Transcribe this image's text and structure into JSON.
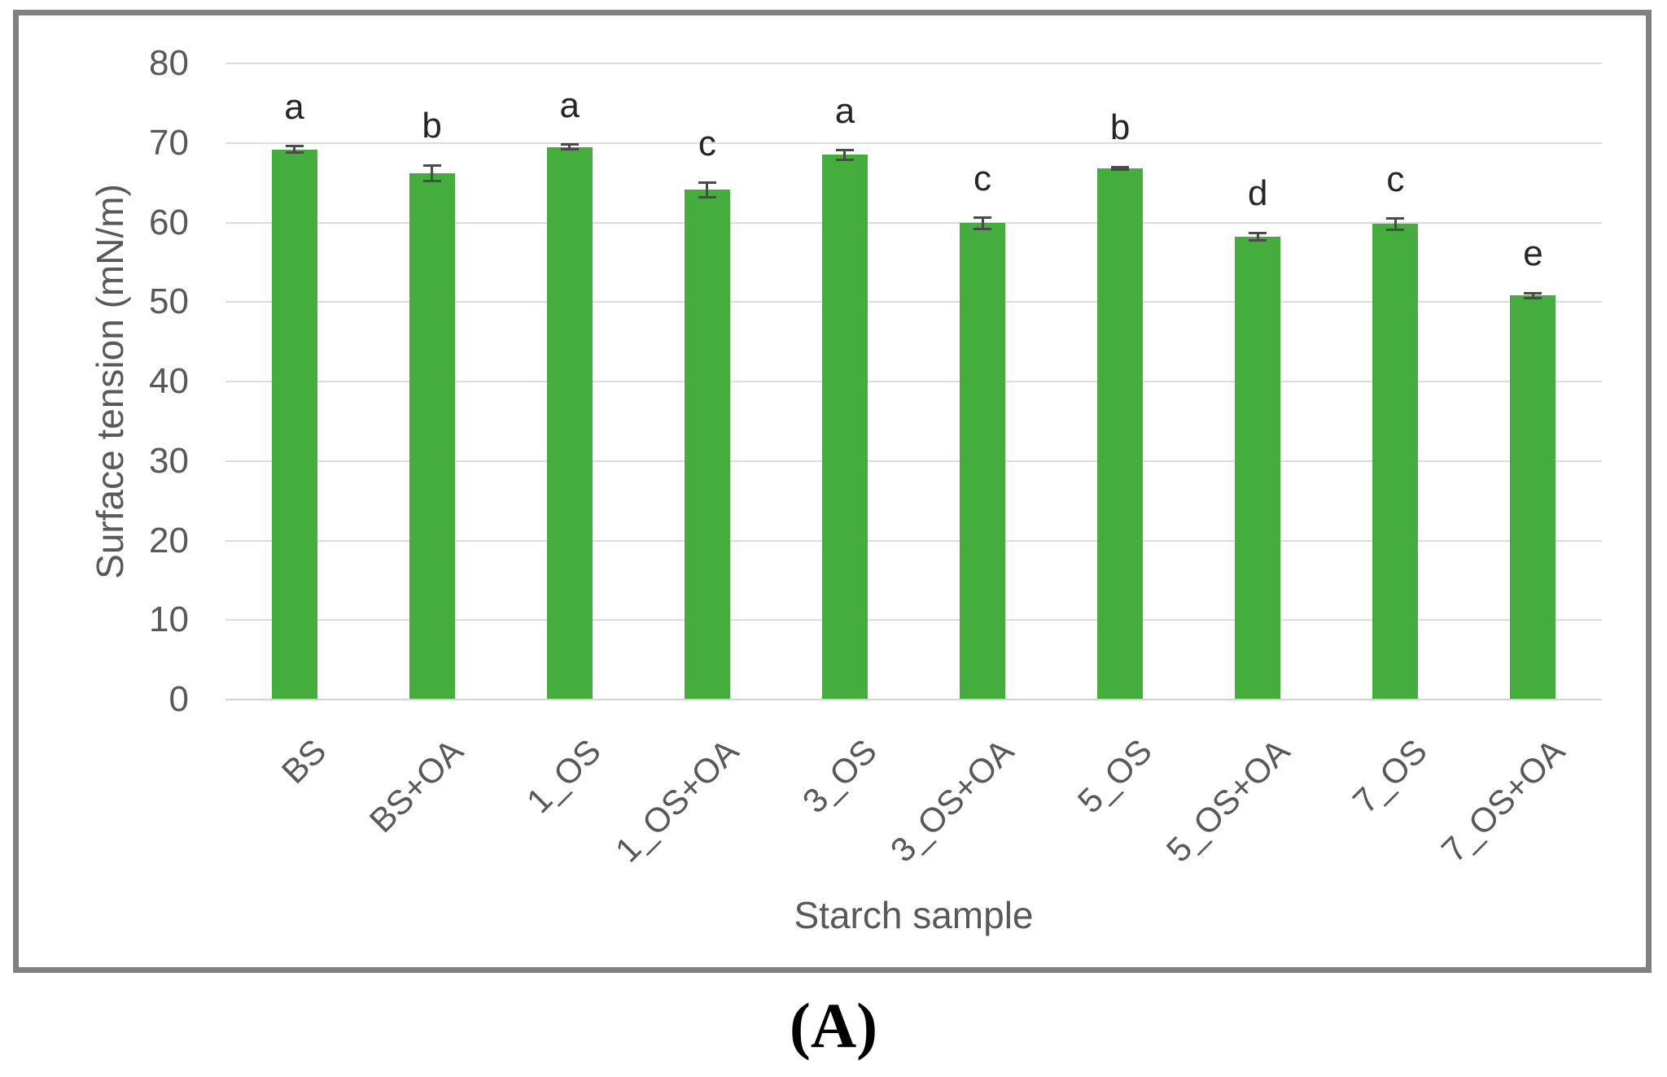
{
  "figure": {
    "panel_label": "(A)"
  },
  "chart_data": {
    "type": "bar",
    "title": "",
    "xlabel": "Starch sample",
    "ylabel": "Surface tension (mN/m)",
    "ylim": [
      0,
      80
    ],
    "yticks": [
      0,
      10,
      20,
      30,
      40,
      50,
      60,
      70,
      80
    ],
    "grid": true,
    "legend_position": "none",
    "categories": [
      "BS",
      "BS+OA",
      "1_OS",
      "1_OS+OA",
      "3_OS",
      "3_OS+OA",
      "5_OS",
      "5_OS+OA",
      "7_OS",
      "7_OS+OA"
    ],
    "series": [
      {
        "name": "Surface tension",
        "values": [
          69.2,
          66.2,
          69.5,
          64.1,
          68.5,
          59.9,
          66.8,
          58.2,
          59.8,
          50.8
        ],
        "errors": [
          0.4,
          1.0,
          0.3,
          0.9,
          0.6,
          0.7,
          0.2,
          0.5,
          0.7,
          0.3
        ],
        "significance_letters": [
          "a",
          "b",
          "a",
          "c",
          "a",
          "c",
          "b",
          "d",
          "c",
          "e"
        ]
      }
    ]
  },
  "colors": {
    "bar_fill": "#45AD3D",
    "error_bar": "#4A4A4A",
    "gridline": "#DCDCDC",
    "axis_text": "#595959",
    "letter_text": "#262626",
    "frame_border": "#808080"
  }
}
